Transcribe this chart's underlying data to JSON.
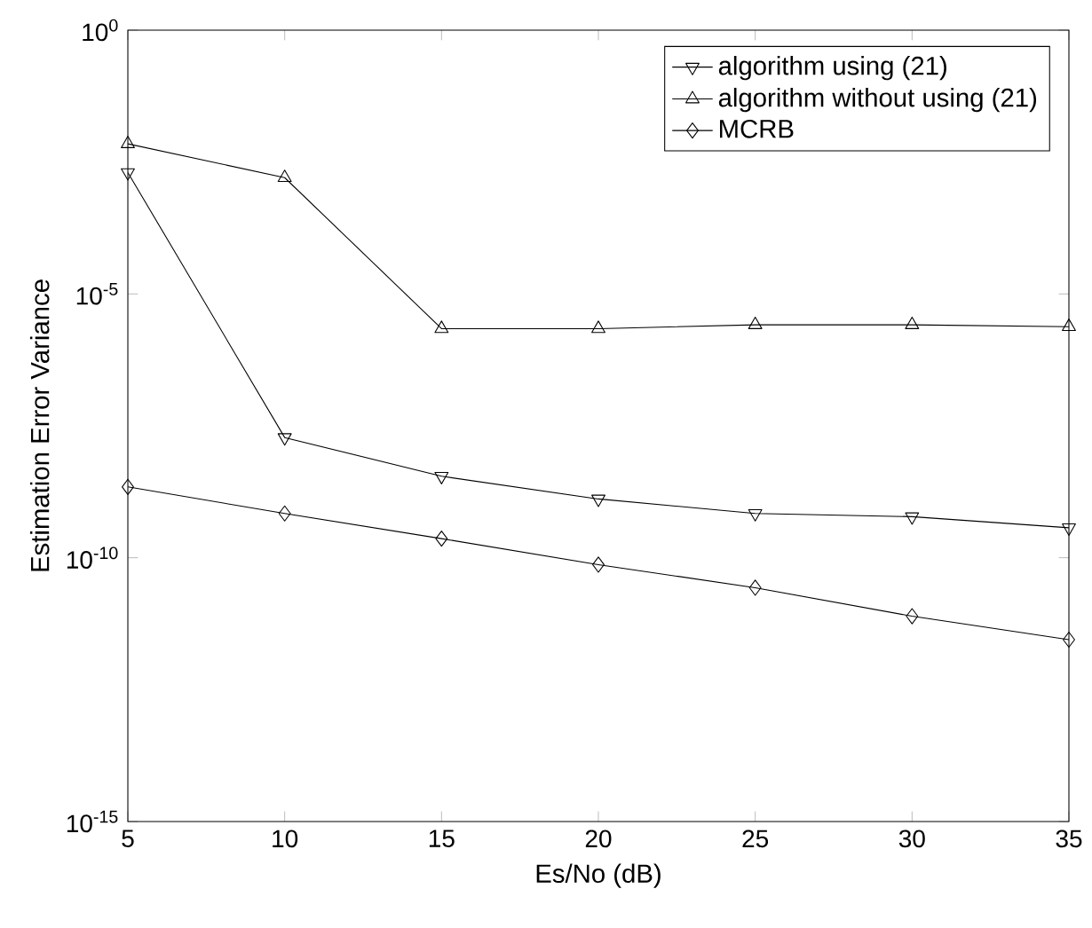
{
  "chart_data": {
    "type": "line",
    "xlabel": "Es/No (dB)",
    "ylabel": "Estimation Error Variance",
    "log": "y",
    "grid": false,
    "legend": "top right",
    "line_style": "solid",
    "x": [
      5,
      10,
      15,
      20,
      25,
      30,
      35
    ],
    "xlim": [
      5,
      35
    ],
    "xticks": [
      5,
      10,
      15,
      20,
      25,
      30,
      35
    ],
    "ylim": [
      1e-15,
      1
    ],
    "yticks": [
      {
        "value": 1,
        "label": "10$^{0}$"
      },
      {
        "value": 1e-05,
        "label": "10$^{-5}$"
      },
      {
        "value": 1e-10,
        "label": "10$^{-10}$"
      },
      {
        "value": 1e-15,
        "label": "10$^{-15}$"
      }
    ],
    "series": [
      {
        "name": "algorithm using (21)",
        "color": "#000000",
        "marker": "triangle-down",
        "values": [
          0.002,
          1.9e-08,
          3.5e-09,
          1.3e-09,
          6.9e-10,
          6e-10,
          3.7e-10
        ]
      },
      {
        "name": "algorithm without using (21)",
        "color": "#000000",
        "marker": "triangle",
        "values": [
          0.007,
          0.0016,
          2.2e-06,
          2.2e-06,
          2.6e-06,
          2.6e-06,
          2.4e-06
        ]
      },
      {
        "name": "MCRB",
        "color": "#000000",
        "marker": "diamond",
        "values": [
          2.2e-09,
          6.9e-10,
          2.3e-10,
          7.4e-11,
          2.7e-11,
          7.8e-12,
          2.8e-12
        ]
      }
    ]
  }
}
